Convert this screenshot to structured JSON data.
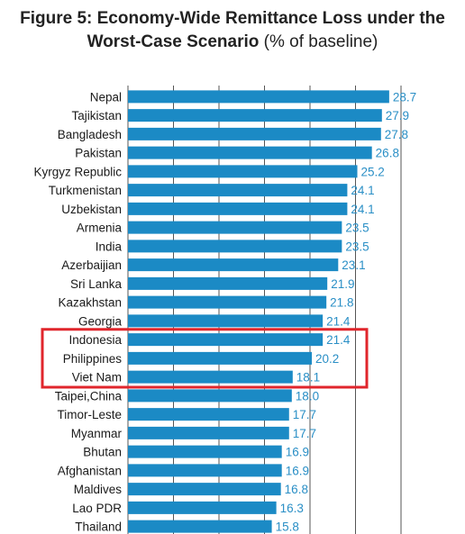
{
  "title_line1": "Figure 5: Economy-Wide Remittance Loss under the",
  "title_line2": "Worst-Case Scenario",
  "title_unit": "(% of baseline)",
  "chart_data": {
    "type": "bar",
    "orientation": "horizontal",
    "categories": [
      "Nepal",
      "Tajikistan",
      "Bangladesh",
      "Pakistan",
      "Kyrgyz Republic",
      "Turkmenistan",
      "Uzbekistan",
      "Armenia",
      "India",
      "Azerbaijian",
      "Sri Lanka",
      "Kazakhstan",
      "Georgia",
      "Indonesia",
      "Philippines",
      "Viet Nam",
      "Taipei,China",
      "Timor-Leste",
      "Myanmar",
      "Bhutan",
      "Afghanistan",
      "Maldives",
      "Lao PDR",
      "Thailand"
    ],
    "values": [
      28.7,
      27.9,
      27.8,
      26.8,
      25.2,
      24.1,
      24.1,
      23.5,
      23.5,
      23.1,
      21.9,
      21.8,
      21.4,
      21.4,
      20.2,
      18.1,
      18.0,
      17.7,
      17.7,
      16.9,
      16.9,
      16.8,
      16.3,
      15.8
    ],
    "value_labels": [
      "28.7",
      "27.9",
      "27.8",
      "26.8",
      "25.2",
      "24.1",
      "24.1",
      "23.5",
      "23.5",
      "23.1",
      "21.9",
      "21.8",
      "21.4",
      "21.4",
      "20.2",
      "18.1",
      "18.0",
      "17.7",
      "17.7",
      "16.9",
      "16.9",
      "16.8",
      "16.3",
      "15.8"
    ],
    "highlighted": [
      "Indonesia",
      "Philippines",
      "Viet Nam"
    ],
    "bar_color": "#1b8ac5",
    "label_color": "#2a8fc6",
    "highlight_color": "#e0262c",
    "xlim": [
      0,
      30
    ],
    "grid": true
  }
}
